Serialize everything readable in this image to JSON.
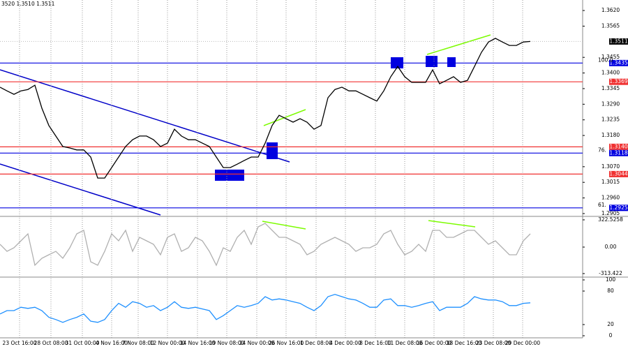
{
  "header": "3520 1.3510 1.3511",
  "chart_data": [
    {
      "type": "line",
      "color": "#000000",
      "grid": true,
      "values": [
        1.335,
        1.3337,
        1.3325,
        1.3337,
        1.3342,
        1.3357,
        1.3276,
        1.3215,
        1.3178,
        1.3141,
        1.3136,
        1.3129,
        1.3129,
        1.3104,
        1.303,
        1.303,
        1.3067,
        1.3104,
        1.3141,
        1.3165,
        1.3178,
        1.3178,
        1.3165,
        1.3141,
        1.3153,
        1.3202,
        1.3178,
        1.3165,
        1.3165,
        1.3153,
        1.3141,
        1.3104,
        1.3067,
        1.3067,
        1.3079,
        1.3092,
        1.3104,
        1.3104,
        1.3153,
        1.3215,
        1.3251,
        1.3239,
        1.3227,
        1.3239,
        1.3227,
        1.3202,
        1.3215,
        1.3313,
        1.3342,
        1.335,
        1.3337,
        1.3337,
        1.3325,
        1.3313,
        1.3301,
        1.3337,
        1.3387,
        1.3423,
        1.3387,
        1.3367,
        1.3367,
        1.3367,
        1.3411,
        1.3362,
        1.3374,
        1.3387,
        1.3367,
        1.3374,
        1.3423,
        1.3473,
        1.3509,
        1.3522,
        1.3509,
        1.3497,
        1.3497,
        1.3509,
        1.3511
      ],
      "xlim": [
        0,
        83.5
      ],
      "ylim": [
        1.29,
        1.3657
      ],
      "xticks": [
        {
          "value": 2.8,
          "label": "23 Oct 16:00"
        },
        {
          "value": 7.3,
          "label": "28 Oct 08:00"
        },
        {
          "value": 11.8,
          "label": "31 Oct 00:00"
        },
        {
          "value": 16,
          "label": "4 Nov 16:00"
        },
        {
          "value": 19.8,
          "label": "7 Nov 08:00"
        },
        {
          "value": 24,
          "label": "12 Nov 00:00"
        },
        {
          "value": 28.3,
          "label": "14 Nov 16:00"
        },
        {
          "value": 32.5,
          "label": "19 Nov 08:00"
        },
        {
          "value": 36.8,
          "label": "24 Nov 00:00"
        },
        {
          "value": 41,
          "label": "26 Nov 16:00"
        },
        {
          "value": 45.3,
          "label": "1 Dec 08:00"
        },
        {
          "value": 49.5,
          "label": "4 Dec 00:00"
        },
        {
          "value": 53.8,
          "label": "8 Dec 16:00"
        },
        {
          "value": 58,
          "label": "11 Dec 08:00"
        },
        {
          "value": 62.2,
          "label": "16 Dec 00:00"
        },
        {
          "value": 66.5,
          "label": "18 Dec 16:00"
        },
        {
          "value": 70.7,
          "label": "23 Dec 08:00"
        },
        {
          "value": 74.9,
          "label": "29 Dec 00:00"
        }
      ],
      "yticks": [
        {
          "value": 1.362,
          "label": "1.3620"
        },
        1.3565,
        1.3455,
        {
          "value": 1.34,
          "label": "1.3400"
        },
        1.3345,
        {
          "value": 1.329,
          "label": "1.3290"
        },
        1.3235,
        {
          "value": 1.318,
          "label": "1.3180"
        },
        {
          "value": 1.307,
          "label": "1.3070"
        },
        1.3015,
        {
          "value": 1.296,
          "label": "1.2960"
        },
        1.2905
      ],
      "levels": [
        {
          "value": 1.3435,
          "color": "#0000e0",
          "fib": "100.0"
        },
        {
          "value": 1.3369,
          "color": "#f03030"
        },
        {
          "value": 1.314,
          "label": "1.3140",
          "color": "#f03030"
        },
        {
          "value": 1.3118,
          "color": "#0000e0",
          "fib": "76."
        },
        {
          "value": 1.3044,
          "color": "#f03030"
        },
        {
          "value": 1.2925,
          "color": "#0000e0",
          "fib": "61."
        }
      ],
      "last_price": 1.3511
    },
    {
      "type": "line",
      "color": "#b0b0b0",
      "values": [
        33,
        -50,
        -8,
        74,
        157,
        -215,
        -132,
        -91,
        -50,
        -132,
        -8,
        157,
        198,
        -174,
        -215,
        -50,
        157,
        74,
        198,
        -50,
        116,
        74,
        33,
        -91,
        116,
        157,
        -50,
        -8,
        116,
        74,
        -50,
        -215,
        -8,
        -50,
        116,
        198,
        33,
        240,
        281,
        198,
        116,
        116,
        74,
        33,
        -91,
        -50,
        33,
        74,
        116,
        74,
        33,
        -50,
        -8,
        -8,
        33,
        157,
        198,
        33,
        -91,
        -50,
        33,
        -50,
        198,
        198,
        116,
        116,
        157,
        198,
        198,
        116,
        33,
        74,
        -8,
        -91,
        -91,
        74,
        157
      ],
      "xlim": [
        0,
        83.5
      ],
      "ylim": [
        -347,
        347
      ],
      "yticks": [
        322.5258,
        {
          "value": 0,
          "label": "0.00"
        },
        -313.422
      ]
    },
    {
      "type": "line",
      "color": "#1e90ff",
      "values": [
        39,
        45,
        45,
        51,
        49,
        51,
        45,
        33,
        29,
        24,
        29,
        33,
        39,
        26,
        24,
        29,
        45,
        58,
        51,
        61,
        58,
        51,
        54,
        45,
        51,
        61,
        51,
        49,
        51,
        48,
        45,
        29,
        36,
        45,
        54,
        51,
        54,
        58,
        70,
        64,
        66,
        64,
        61,
        58,
        51,
        45,
        54,
        70,
        74,
        70,
        66,
        64,
        58,
        51,
        51,
        64,
        66,
        54,
        54,
        51,
        54,
        58,
        61,
        45,
        51,
        51,
        51,
        58,
        70,
        66,
        64,
        64,
        61,
        54,
        54,
        58,
        59
      ],
      "xlim": [
        0,
        83.5
      ],
      "ylim": [
        -3.75,
        103.75
      ],
      "yticks": [
        100,
        80,
        20,
        0
      ]
    }
  ]
}
